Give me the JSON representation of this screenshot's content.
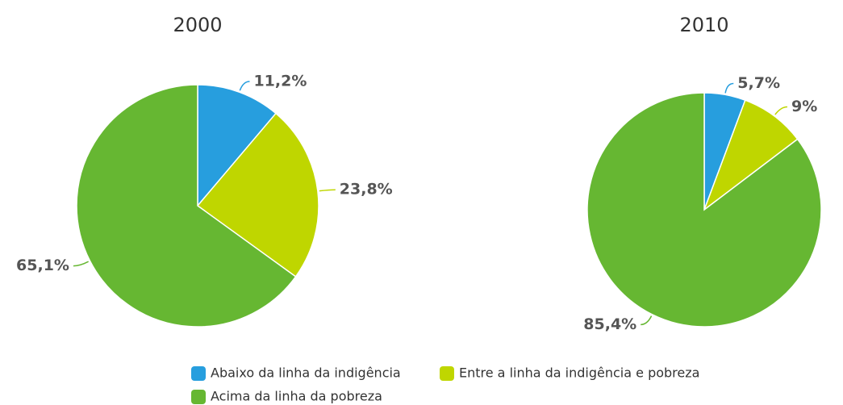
{
  "chart_data": [
    {
      "type": "pie",
      "title": "2000",
      "values": [
        11.2,
        23.8,
        65.1
      ],
      "value_labels": [
        "11,2%",
        "23,8%",
        "65,1%"
      ]
    },
    {
      "type": "pie",
      "title": "2010",
      "values": [
        5.7,
        9,
        85.4
      ],
      "value_labels": [
        "5,7%",
        "9%",
        "85,4%"
      ]
    }
  ],
  "legend": {
    "labels": [
      "Abaixo da linha da indigência",
      "Entre a linha da indigência e pobreza",
      "Acima da linha da pobreza"
    ],
    "colors": [
      "#279ede",
      "#bfd600",
      "#66b732"
    ]
  }
}
